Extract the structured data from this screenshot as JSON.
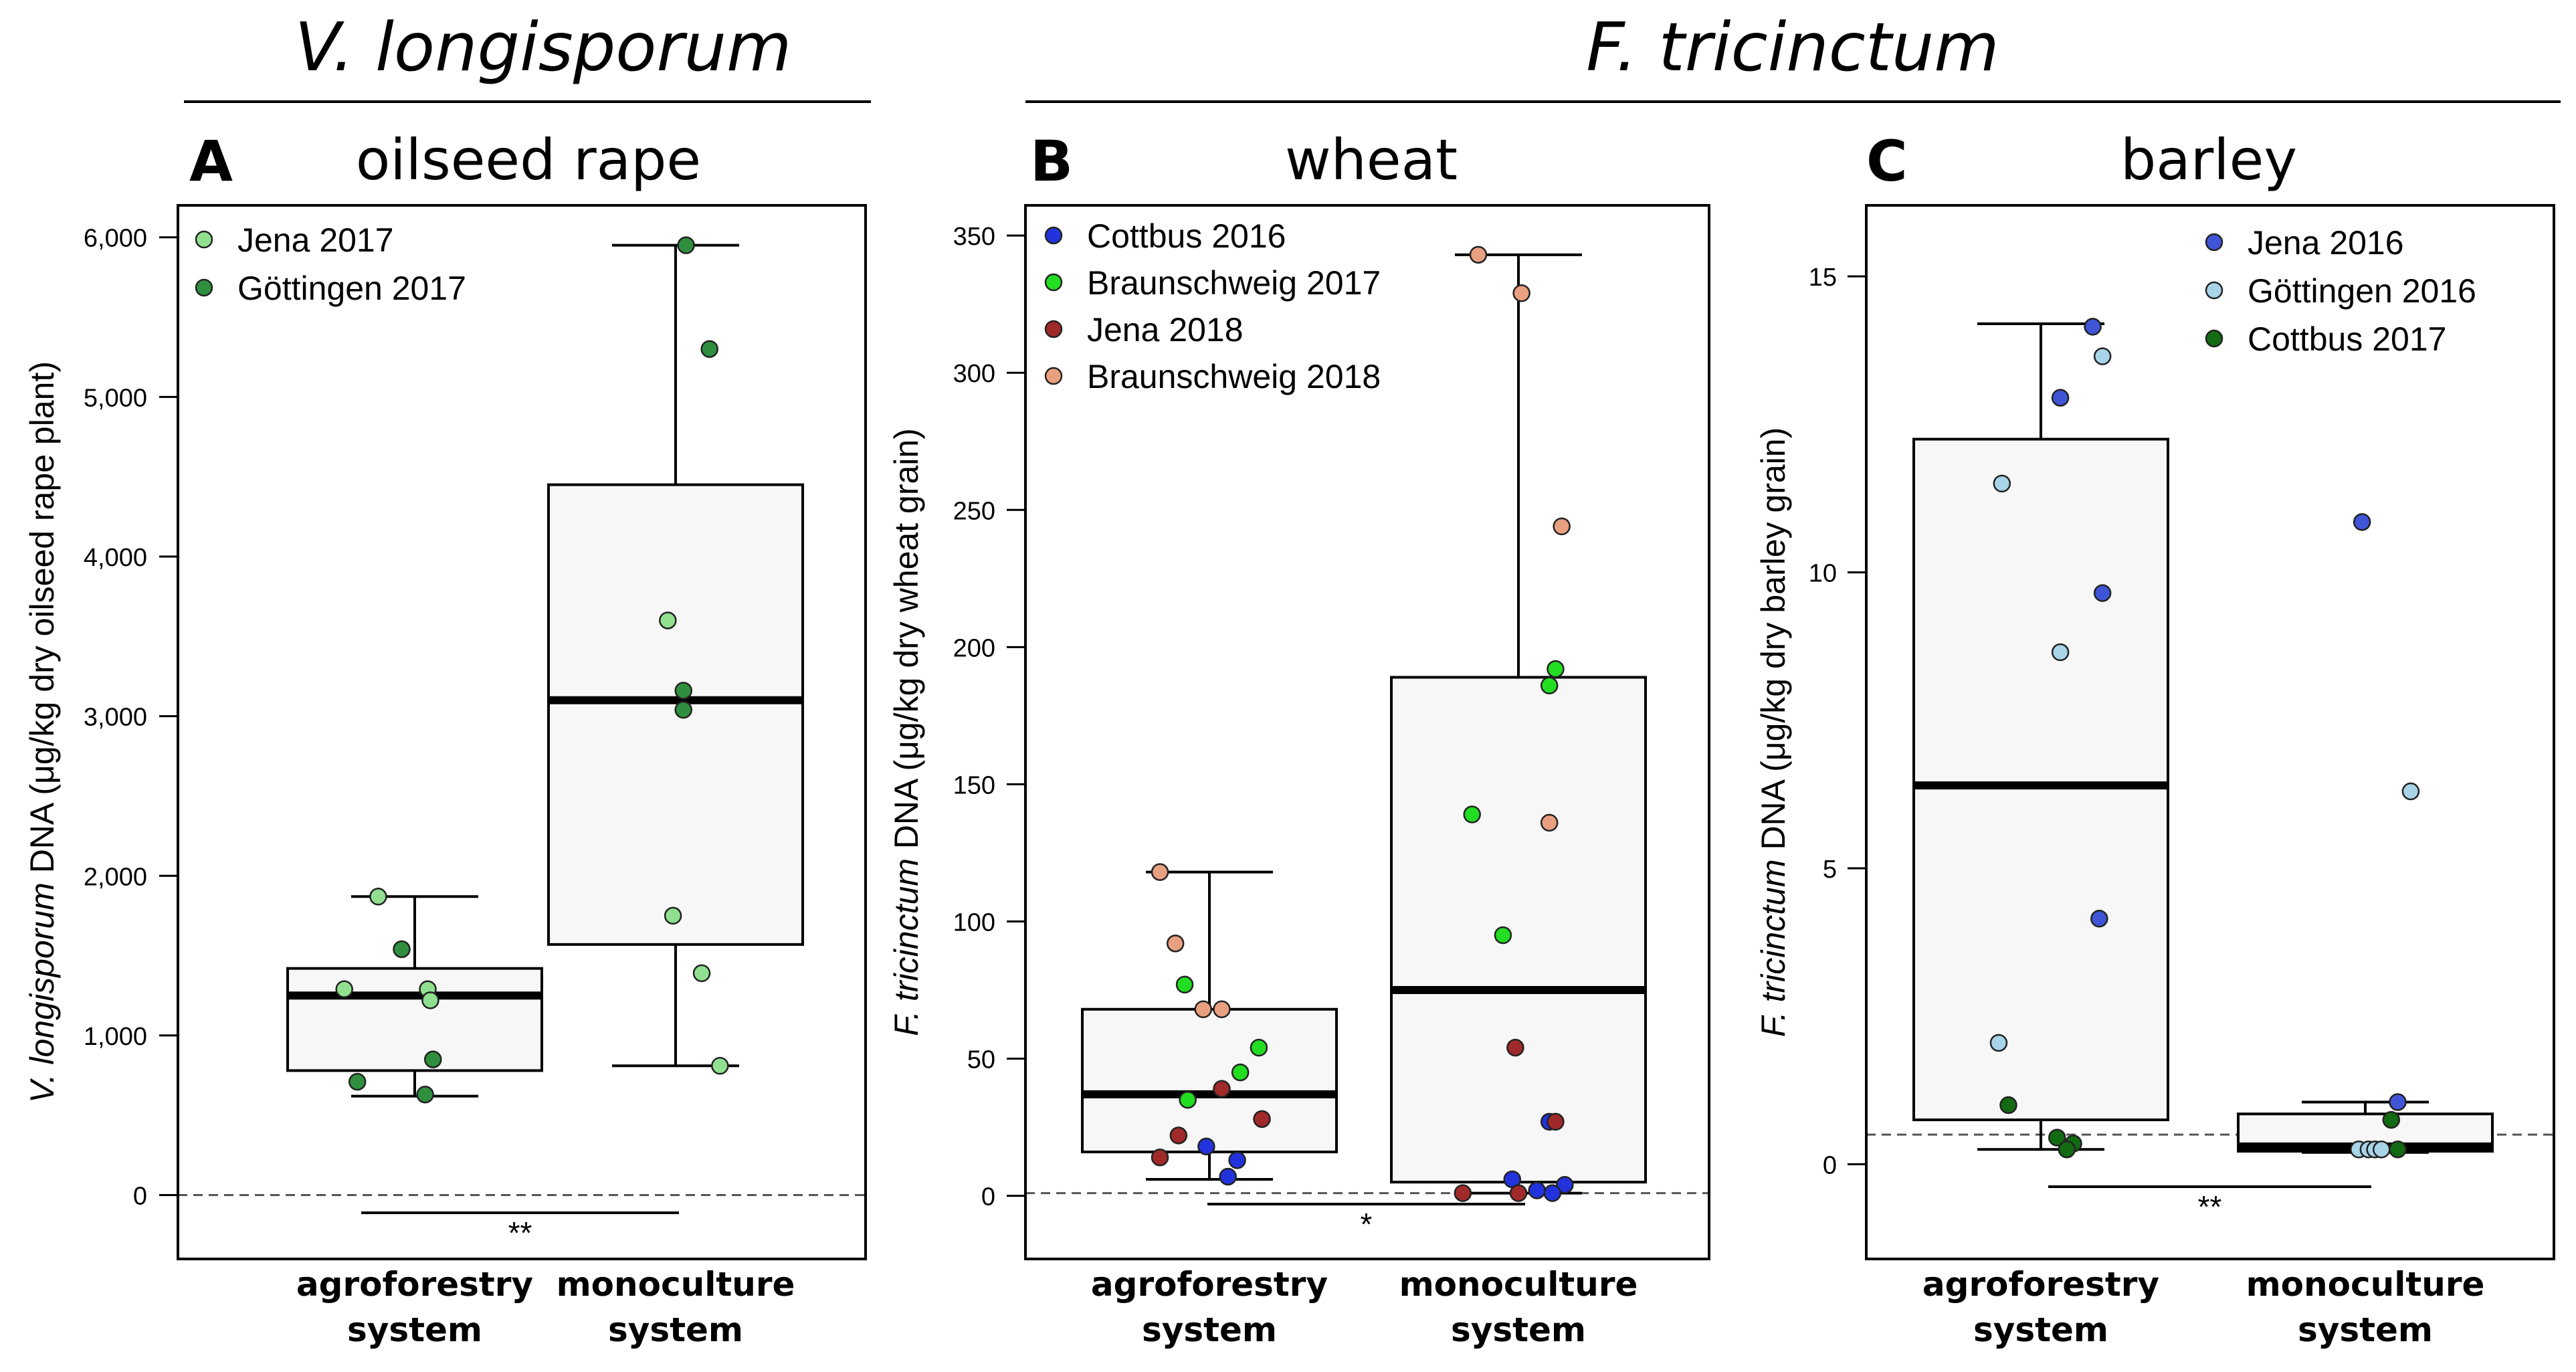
{
  "headers": {
    "left": "V. longisporum",
    "right": "F. tricinctum"
  },
  "colors": {
    "jena2017": "#90e090",
    "gottingen2017": "#2f8f3f",
    "cottbus2016": "#2233dd",
    "braunschweig2017": "#22dd22",
    "jena2018": "#a02a2a",
    "braunschweig2018": "#e8a080",
    "jena2016": "#3f55d6",
    "gottingen2016": "#a8d4e8",
    "cottbus2017": "#126a12",
    "box_fill": "#f7f7f7"
  },
  "chart_data": [
    {
      "type": "box",
      "panel_letter": "A",
      "title": "oilseed rape",
      "ylabel_italic": "V. longisporum",
      "ylabel_rest": " DNA (μg/kg dry oilseed rape plant)",
      "categories": [
        "agroforestry|system",
        "monoculture|system"
      ],
      "ylim": [
        -400,
        6200
      ],
      "yticks": [
        0,
        1000,
        2000,
        3000,
        4000,
        5000,
        6000
      ],
      "ytick_labels": [
        "0",
        "1,000",
        "2,000",
        "3,000",
        "4,000",
        "5,000",
        "6,000"
      ],
      "threshold": 0,
      "significance": "**",
      "legend_position": "top-left",
      "legend": [
        {
          "label": "Jena 2017",
          "color": "#90e090"
        },
        {
          "label": "Göttingen 2017",
          "color": "#2f8f3f"
        }
      ],
      "boxes": [
        {
          "wlo": 620,
          "q1": 780,
          "median": 1250,
          "q3": 1420,
          "whi": 1870
        },
        {
          "wlo": 810,
          "q1": 1570,
          "median": 3100,
          "q3": 4450,
          "whi": 5950
        }
      ],
      "points": [
        {
          "g": 0,
          "j": -0.14,
          "v": 1870,
          "s": 0
        },
        {
          "g": 0,
          "j": -0.05,
          "v": 1540,
          "s": 1
        },
        {
          "g": 0,
          "j": -0.27,
          "v": 1290,
          "s": 0
        },
        {
          "g": 0,
          "j": 0.05,
          "v": 1290,
          "s": 0
        },
        {
          "g": 0,
          "j": 0.06,
          "v": 1220,
          "s": 0
        },
        {
          "g": 0,
          "j": 0.07,
          "v": 850,
          "s": 1
        },
        {
          "g": 0,
          "j": -0.22,
          "v": 710,
          "s": 1
        },
        {
          "g": 0,
          "j": 0.04,
          "v": 630,
          "s": 1
        },
        {
          "g": 1,
          "j": 0.04,
          "v": 5950,
          "s": 1
        },
        {
          "g": 1,
          "j": 0.13,
          "v": 5300,
          "s": 1
        },
        {
          "g": 1,
          "j": -0.03,
          "v": 3600,
          "s": 0
        },
        {
          "g": 1,
          "j": 0.03,
          "v": 3160,
          "s": 1
        },
        {
          "g": 1,
          "j": 0.03,
          "v": 3040,
          "s": 1
        },
        {
          "g": 1,
          "j": -0.01,
          "v": 1750,
          "s": 0
        },
        {
          "g": 1,
          "j": 0.1,
          "v": 1390,
          "s": 0
        },
        {
          "g": 1,
          "j": 0.17,
          "v": 810,
          "s": 0
        }
      ]
    },
    {
      "type": "box",
      "panel_letter": "B",
      "title": "wheat",
      "ylabel_italic": "F. tricinctum",
      "ylabel_rest": " DNA (μg/kg dry wheat grain)",
      "categories": [
        "agroforestry|system",
        "monoculture|system"
      ],
      "ylim": [
        -23,
        361
      ],
      "yticks": [
        0,
        50,
        100,
        150,
        200,
        250,
        300,
        350
      ],
      "ytick_labels": [
        "0",
        "50",
        "100",
        "150",
        "200",
        "250",
        "300",
        "350"
      ],
      "threshold": 1,
      "significance": "*",
      "legend_position": "top-left",
      "legend": [
        {
          "label": "Cottbus 2016",
          "color": "#2233dd"
        },
        {
          "label": "Braunschweig 2017",
          "color": "#22dd22"
        },
        {
          "label": "Jena 2018",
          "color": "#a02a2a"
        },
        {
          "label": "Braunschweig 2018",
          "color": "#e8a080"
        }
      ],
      "boxes": [
        {
          "wlo": 6,
          "q1": 16,
          "median": 37,
          "q3": 68,
          "whi": 118
        },
        {
          "wlo": 1,
          "q1": 5,
          "median": 75,
          "q3": 189,
          "whi": 343
        }
      ],
      "points": [
        {
          "g": 0,
          "j": -0.16,
          "v": 118,
          "s": 3
        },
        {
          "g": 0,
          "j": -0.11,
          "v": 92,
          "s": 3
        },
        {
          "g": 0,
          "j": -0.08,
          "v": 77,
          "s": 1
        },
        {
          "g": 0,
          "j": -0.02,
          "v": 68,
          "s": 3
        },
        {
          "g": 0,
          "j": 0.04,
          "v": 68,
          "s": 3
        },
        {
          "g": 0,
          "j": 0.16,
          "v": 54,
          "s": 1
        },
        {
          "g": 0,
          "j": 0.1,
          "v": 45,
          "s": 1
        },
        {
          "g": 0,
          "j": 0.04,
          "v": 39,
          "s": 2
        },
        {
          "g": 0,
          "j": -0.07,
          "v": 35,
          "s": 1
        },
        {
          "g": 0,
          "j": 0.17,
          "v": 28,
          "s": 2
        },
        {
          "g": 0,
          "j": -0.1,
          "v": 22,
          "s": 2
        },
        {
          "g": 0,
          "j": -0.01,
          "v": 18,
          "s": 0
        },
        {
          "g": 0,
          "j": -0.16,
          "v": 14,
          "s": 2
        },
        {
          "g": 0,
          "j": 0.09,
          "v": 13,
          "s": 0
        },
        {
          "g": 0,
          "j": 0.06,
          "v": 7,
          "s": 0
        },
        {
          "g": 1,
          "j": -0.13,
          "v": 343,
          "s": 3
        },
        {
          "g": 1,
          "j": 0.01,
          "v": 329,
          "s": 3
        },
        {
          "g": 1,
          "j": 0.14,
          "v": 244,
          "s": 3
        },
        {
          "g": 1,
          "j": 0.12,
          "v": 192,
          "s": 1
        },
        {
          "g": 1,
          "j": 0.1,
          "v": 186,
          "s": 1
        },
        {
          "g": 1,
          "j": -0.15,
          "v": 139,
          "s": 1
        },
        {
          "g": 1,
          "j": 0.1,
          "v": 136,
          "s": 3
        },
        {
          "g": 1,
          "j": -0.05,
          "v": 95,
          "s": 1
        },
        {
          "g": 1,
          "j": -0.01,
          "v": 54,
          "s": 2
        },
        {
          "g": 1,
          "j": 0.1,
          "v": 27,
          "s": 0
        },
        {
          "g": 1,
          "j": 0.12,
          "v": 27,
          "s": 2
        },
        {
          "g": 1,
          "j": -0.02,
          "v": 6,
          "s": 0
        },
        {
          "g": 1,
          "j": 0.15,
          "v": 4,
          "s": 0
        },
        {
          "g": 1,
          "j": 0.06,
          "v": 2,
          "s": 0
        },
        {
          "g": 1,
          "j": 0.11,
          "v": 1,
          "s": 0
        },
        {
          "g": 1,
          "j": -0.18,
          "v": 1,
          "s": 2
        },
        {
          "g": 1,
          "j": 0.0,
          "v": 1,
          "s": 2
        }
      ]
    },
    {
      "type": "box",
      "panel_letter": "C",
      "title": "barley",
      "ylabel_italic": "F. tricinctum",
      "ylabel_rest": " DNA (μg/kg dry barley grain)",
      "categories": [
        "agroforestry|system",
        "monoculture|system"
      ],
      "ylim": [
        -1.6,
        16.2
      ],
      "yticks": [
        0,
        5,
        10,
        15
      ],
      "ytick_labels": [
        "0",
        "5",
        "10",
        "15"
      ],
      "threshold": 0.5,
      "significance": "**",
      "legend_position": "top-right",
      "legend": [
        {
          "label": "Jena 2016",
          "color": "#3f55d6"
        },
        {
          "label": "Göttingen 2016",
          "color": "#a8d4e8"
        },
        {
          "label": "Cottbus 2017",
          "color": "#126a12"
        }
      ],
      "boxes": [
        {
          "wlo": 0.25,
          "q1": 0.75,
          "median": 6.4,
          "q3": 12.25,
          "whi": 14.2
        },
        {
          "wlo": 0.2,
          "q1": 0.22,
          "median": 0.3,
          "q3": 0.85,
          "whi": 1.05
        }
      ],
      "points": [
        {
          "g": 0,
          "j": 0.16,
          "v": 14.15,
          "s": 0
        },
        {
          "g": 0,
          "j": 0.19,
          "v": 13.65,
          "s": 1
        },
        {
          "g": 0,
          "j": 0.06,
          "v": 12.95,
          "s": 0
        },
        {
          "g": 0,
          "j": -0.12,
          "v": 11.5,
          "s": 1
        },
        {
          "g": 0,
          "j": 0.19,
          "v": 9.65,
          "s": 0
        },
        {
          "g": 0,
          "j": 0.06,
          "v": 8.65,
          "s": 1
        },
        {
          "g": 0,
          "j": 0.18,
          "v": 4.15,
          "s": 0
        },
        {
          "g": 0,
          "j": -0.13,
          "v": 2.05,
          "s": 1
        },
        {
          "g": 0,
          "j": -0.1,
          "v": 1.0,
          "s": 2
        },
        {
          "g": 0,
          "j": 0.05,
          "v": 0.45,
          "s": 2
        },
        {
          "g": 0,
          "j": 0.1,
          "v": 0.35,
          "s": 2
        },
        {
          "g": 0,
          "j": 0.08,
          "v": 0.25,
          "s": 2
        },
        {
          "g": 1,
          "j": -0.01,
          "v": 10.85,
          "s": 0
        },
        {
          "g": 1,
          "j": 0.14,
          "v": 6.3,
          "s": 1
        },
        {
          "g": 1,
          "j": 0.1,
          "v": 1.05,
          "s": 0
        },
        {
          "g": 1,
          "j": 0.08,
          "v": 0.75,
          "s": 2
        },
        {
          "g": 1,
          "j": -0.02,
          "v": 0.25,
          "s": 1
        },
        {
          "g": 1,
          "j": 0.01,
          "v": 0.25,
          "s": 1
        },
        {
          "g": 1,
          "j": 0.03,
          "v": 0.25,
          "s": 1
        },
        {
          "g": 1,
          "j": 0.05,
          "v": 0.25,
          "s": 1
        },
        {
          "g": 1,
          "j": 0.1,
          "v": 0.25,
          "s": 2
        }
      ]
    }
  ]
}
